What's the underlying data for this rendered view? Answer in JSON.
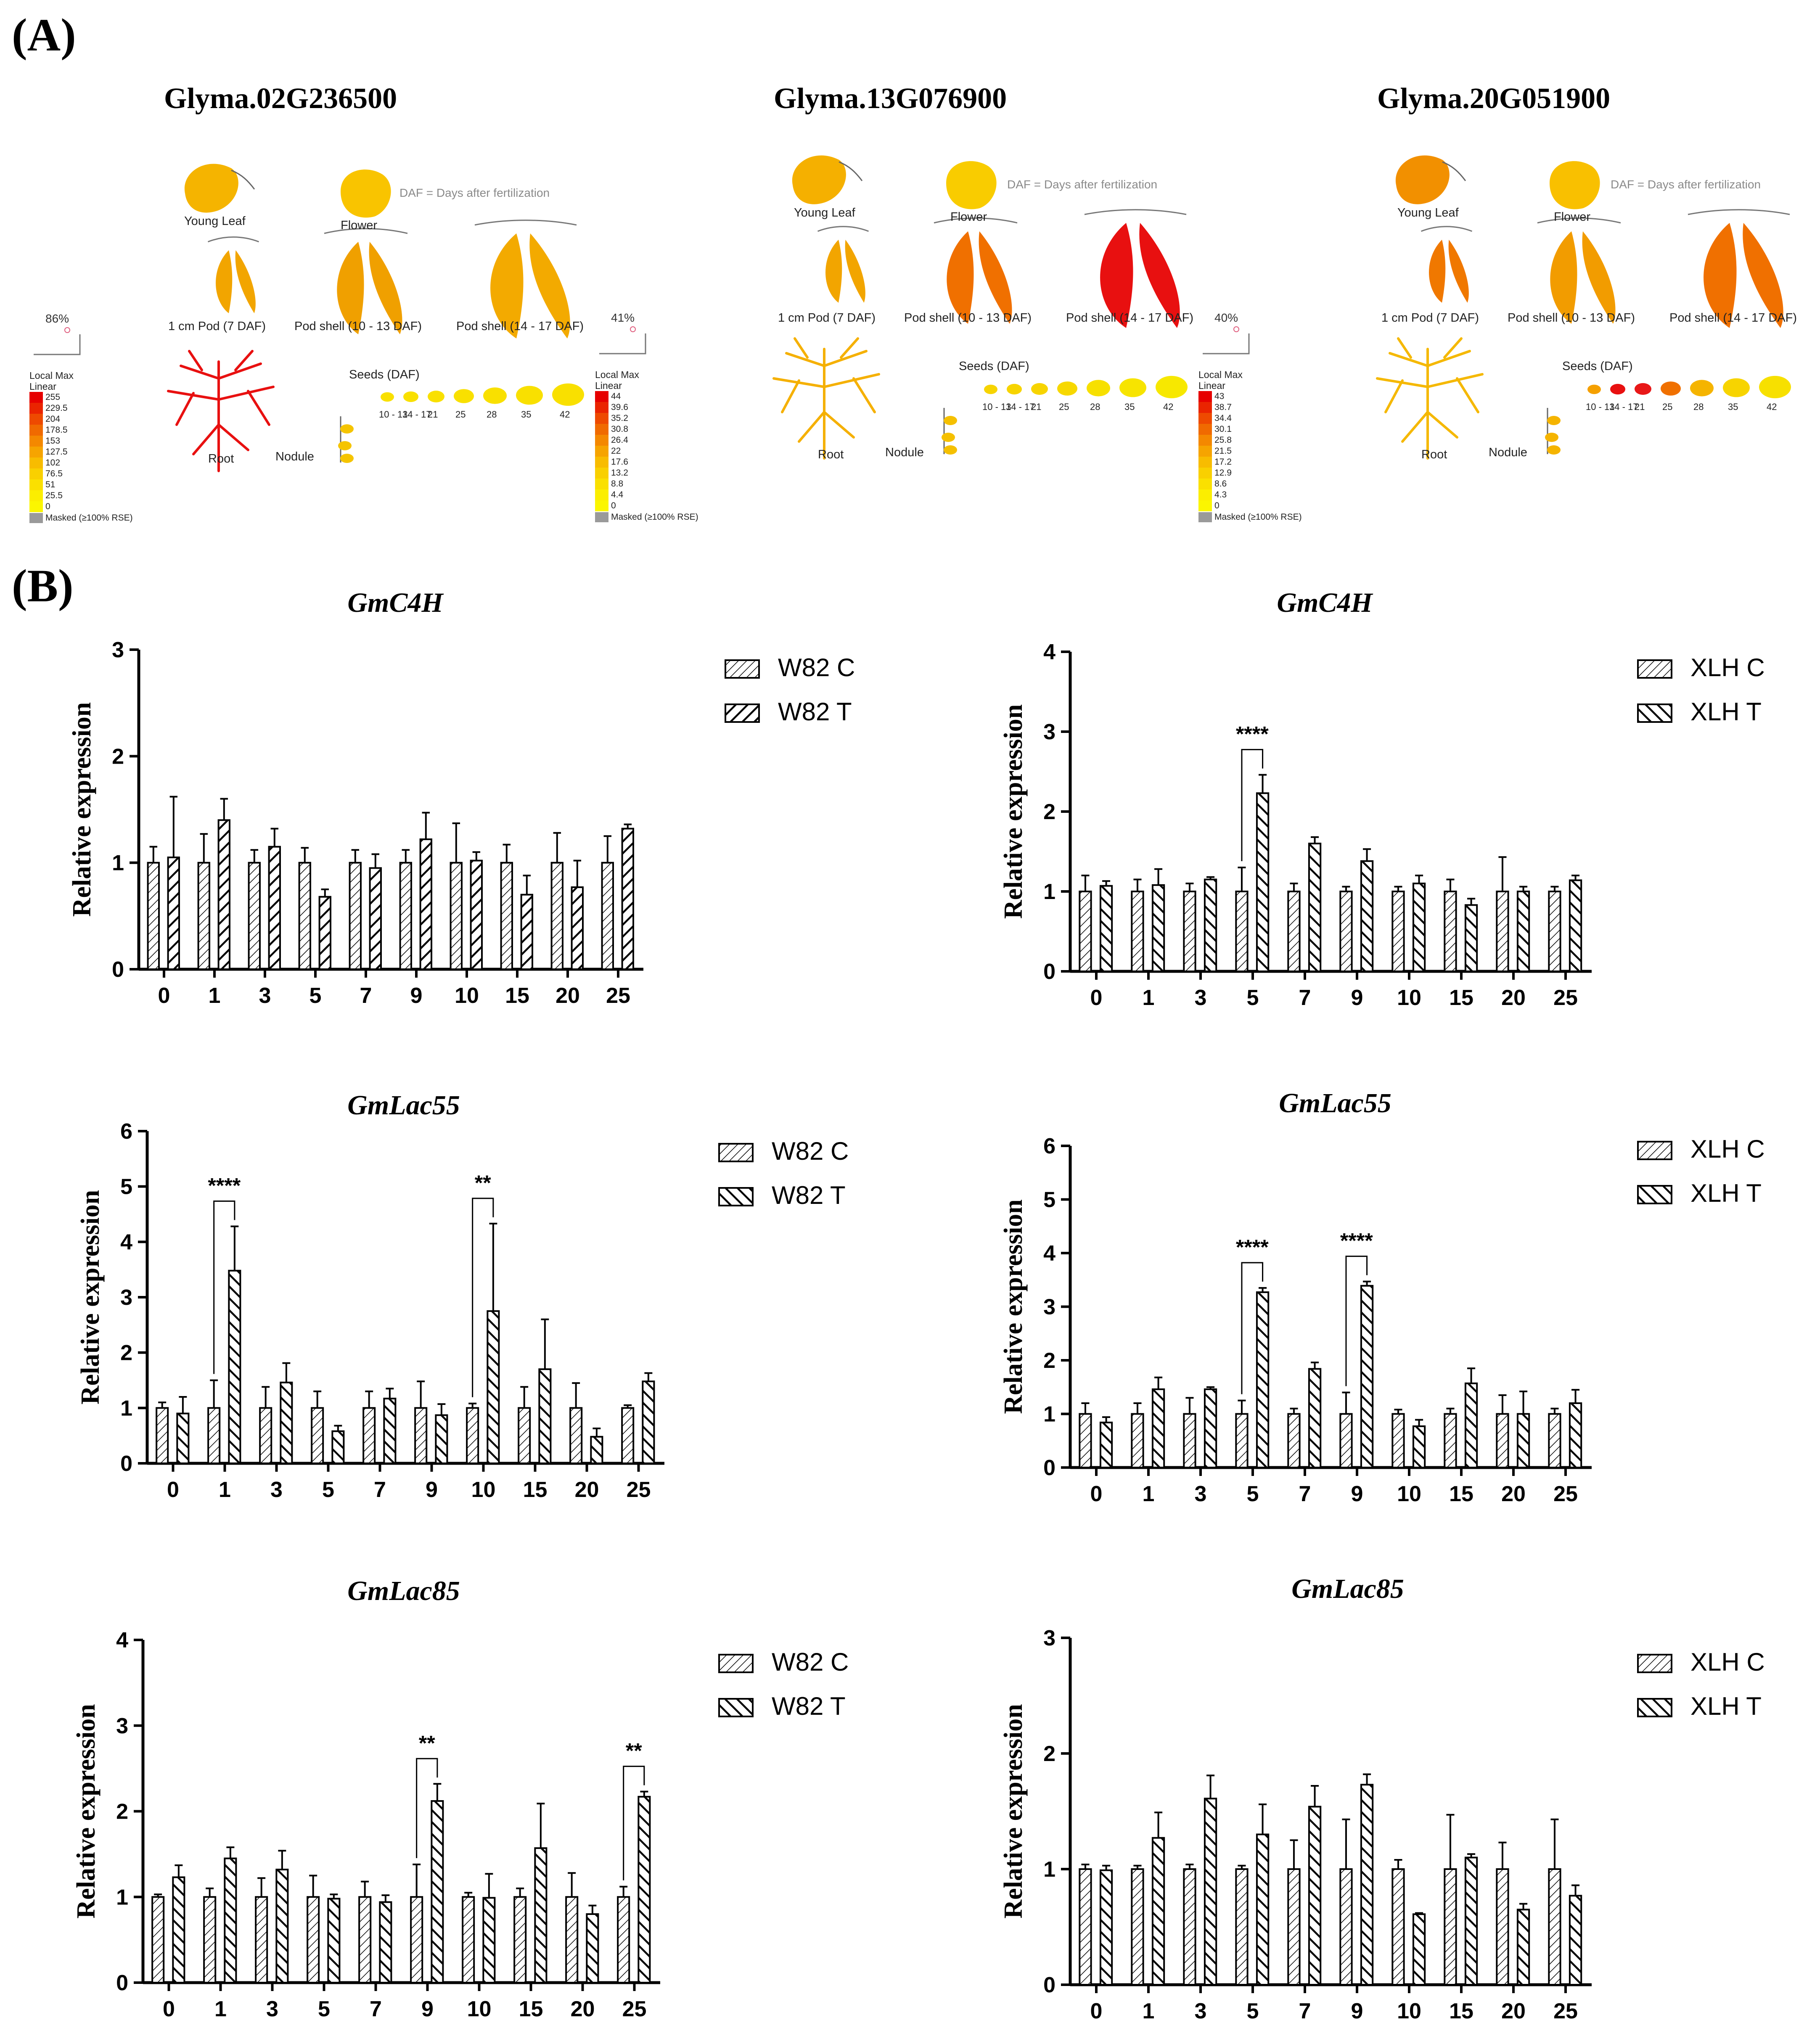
{
  "panel_a": {
    "letter": "(A)",
    "daf_note": "DAF = Days after fertilization",
    "organs": {
      "young_leaf": "Young Leaf",
      "flower": "Flower",
      "pod_1cm": "1 cm Pod (7 DAF)",
      "pod_shell_10_13": "Pod shell (10 - 13 DAF)",
      "pod_shell_14_17": "Pod shell (14 - 17 DAF)",
      "root": "Root",
      "nodule": "Nodule",
      "seeds": "Seeds (DAF)"
    },
    "seed_stages": [
      "10 - 13",
      "14 - 17",
      "21",
      "25",
      "28",
      "35",
      "42"
    ],
    "legend_title_1": "Local Max",
    "legend_title_2": "Linear",
    "masked_label": "Masked (≥100% RSE)",
    "genes": [
      {
        "name": "Glyma.02G236500",
        "percent": "86%",
        "scale": [
          "255",
          "229.5",
          "204",
          "178.5",
          "153",
          "127.5",
          "102",
          "76.5",
          "51",
          "25.5",
          "0"
        ],
        "colors": {
          "young_leaf": "#f5b400",
          "flower": "#f9c400",
          "pod_1cm": "#f2a500",
          "pod_shell_10_13": "#f0a000",
          "pod_shell_14_17": "#f3aa00",
          "root": "#e81010",
          "nodule": "#f5c400",
          "seeds": [
            "#f9e000",
            "#f9e000",
            "#f9e000",
            "#f9e000",
            "#f9e000",
            "#f9e000",
            "#f9e000"
          ]
        }
      },
      {
        "name": "Glyma.13G076900",
        "percent": "41%",
        "scale": [
          "44",
          "39.6",
          "35.2",
          "30.8",
          "26.4",
          "22",
          "17.6",
          "13.2",
          "8.8",
          "4.4",
          "0"
        ],
        "colors": {
          "young_leaf": "#f5b000",
          "flower": "#f9cc00",
          "pod_1cm": "#f2a500",
          "pod_shell_10_13": "#f07000",
          "pod_shell_14_17": "#e81010",
          "root": "#f5b000",
          "nodule": "#f5c000",
          "seeds": [
            "#f7d400",
            "#f7d400",
            "#f7d400",
            "#f7d800",
            "#f7e000",
            "#f7e400",
            "#f7e800"
          ]
        }
      },
      {
        "name": "Glyma.20G051900",
        "percent": "40%",
        "scale": [
          "43",
          "38.7",
          "34.4",
          "30.1",
          "25.8",
          "21.5",
          "17.2",
          "12.9",
          "8.6",
          "4.3",
          "0"
        ],
        "colors": {
          "young_leaf": "#f29000",
          "flower": "#f9c000",
          "pod_1cm": "#f07800",
          "pod_shell_10_13": "#f29c00",
          "pod_shell_14_17": "#f07000",
          "root": "#f5b800",
          "nodule": "#f5b400",
          "seeds": [
            "#f5a000",
            "#e81010",
            "#e81818",
            "#f07000",
            "#f5b400",
            "#f7d400",
            "#f7e000"
          ]
        }
      }
    ]
  },
  "panel_b": {
    "letter": "(B)"
  },
  "chart_data": [
    {
      "type": "bar",
      "title": "GmC4H",
      "xlabel": "",
      "ylabel": "Relative expression",
      "ylim": [
        0,
        3
      ],
      "yticks": [
        0,
        1,
        2,
        3
      ],
      "categories": [
        "0",
        "1",
        "3",
        "5",
        "7",
        "9",
        "10",
        "15",
        "20",
        "25"
      ],
      "series": [
        {
          "name": "W82  C",
          "values": [
            1.0,
            1.0,
            1.0,
            1.0,
            1.0,
            1.0,
            1.0,
            1.0,
            1.0,
            1.0
          ],
          "errors": [
            0.15,
            0.27,
            0.12,
            0.14,
            0.12,
            0.12,
            0.37,
            0.17,
            0.28,
            0.25
          ]
        },
        {
          "name": "W82  T",
          "values": [
            1.05,
            1.4,
            1.15,
            0.68,
            0.95,
            1.22,
            1.02,
            0.7,
            0.77,
            1.32
          ],
          "errors": [
            0.57,
            0.2,
            0.17,
            0.07,
            0.13,
            0.25,
            0.08,
            0.18,
            0.25,
            0.04
          ]
        }
      ],
      "significance": []
    },
    {
      "type": "bar",
      "title": "GmC4H",
      "xlabel": "",
      "ylabel": "Relative expression",
      "ylim": [
        0,
        4
      ],
      "yticks": [
        0,
        1,
        2,
        3,
        4
      ],
      "categories": [
        "0",
        "1",
        "3",
        "5",
        "7",
        "9",
        "10",
        "15",
        "20",
        "25"
      ],
      "series": [
        {
          "name": "XLH  C",
          "values": [
            1.0,
            1.0,
            1.0,
            1.0,
            1.0,
            1.0,
            1.0,
            1.0,
            1.0,
            1.0
          ],
          "errors": [
            0.2,
            0.15,
            0.1,
            0.3,
            0.1,
            0.06,
            0.06,
            0.15,
            0.43,
            0.06
          ]
        },
        {
          "name": "XLH  T",
          "values": [
            1.07,
            1.08,
            1.15,
            2.23,
            1.6,
            1.38,
            1.1,
            0.83,
            1.0,
            1.14
          ],
          "errors": [
            0.06,
            0.2,
            0.03,
            0.23,
            0.08,
            0.15,
            0.1,
            0.08,
            0.06,
            0.06
          ]
        }
      ],
      "significance": [
        {
          "index": 3,
          "label": "****"
        }
      ]
    },
    {
      "type": "bar",
      "title": "GmLac55",
      "xlabel": "",
      "ylabel": "Relative expression",
      "ylim": [
        0,
        6
      ],
      "yticks": [
        0,
        1,
        2,
        3,
        4,
        5,
        6
      ],
      "categories": [
        "0",
        "1",
        "3",
        "5",
        "7",
        "9",
        "10",
        "15",
        "20",
        "25"
      ],
      "series": [
        {
          "name": "W82 C",
          "values": [
            1.0,
            1.0,
            1.0,
            1.0,
            1.0,
            1.0,
            1.0,
            1.0,
            1.0,
            1.0
          ],
          "errors": [
            0.1,
            0.5,
            0.38,
            0.3,
            0.3,
            0.48,
            0.08,
            0.38,
            0.45,
            0.05
          ]
        },
        {
          "name": "W82 T",
          "values": [
            0.9,
            3.48,
            1.46,
            0.58,
            1.17,
            0.87,
            2.75,
            1.7,
            0.48,
            1.48
          ],
          "errors": [
            0.3,
            0.8,
            0.35,
            0.1,
            0.18,
            0.2,
            1.58,
            0.9,
            0.15,
            0.15
          ]
        }
      ],
      "significance": [
        {
          "index": 1,
          "label": "****"
        },
        {
          "index": 6,
          "label": "**"
        }
      ]
    },
    {
      "type": "bar",
      "title": "GmLac55",
      "xlabel": "",
      "ylabel": "Relative expression",
      "ylim": [
        0,
        6
      ],
      "yticks": [
        0,
        1,
        2,
        3,
        4,
        5,
        6
      ],
      "categories": [
        "0",
        "1",
        "3",
        "5",
        "7",
        "9",
        "10",
        "15",
        "20",
        "25"
      ],
      "series": [
        {
          "name": "XLH C",
          "values": [
            1.0,
            1.0,
            1.0,
            1.0,
            1.0,
            1.0,
            1.0,
            1.0,
            1.0,
            1.0
          ],
          "errors": [
            0.2,
            0.2,
            0.3,
            0.25,
            0.1,
            0.4,
            0.08,
            0.1,
            0.35,
            0.1
          ]
        },
        {
          "name": "XLH T",
          "values": [
            0.84,
            1.46,
            1.46,
            3.27,
            1.84,
            3.39,
            0.77,
            1.57,
            1.0,
            1.2
          ],
          "errors": [
            0.1,
            0.22,
            0.04,
            0.08,
            0.12,
            0.08,
            0.12,
            0.28,
            0.42,
            0.25
          ]
        }
      ],
      "significance": [
        {
          "index": 3,
          "label": "****"
        },
        {
          "index": 5,
          "label": "****"
        }
      ]
    },
    {
      "type": "bar",
      "title": "GmLac85",
      "xlabel": "",
      "ylabel": "Relative expression",
      "ylim": [
        0,
        4
      ],
      "yticks": [
        0,
        1,
        2,
        3,
        4
      ],
      "categories": [
        "0",
        "1",
        "3",
        "5",
        "7",
        "9",
        "10",
        "15",
        "20",
        "25"
      ],
      "series": [
        {
          "name": "W82 C",
          "values": [
            1.0,
            1.0,
            1.0,
            1.0,
            1.0,
            1.0,
            1.0,
            1.0,
            1.0,
            1.0
          ],
          "errors": [
            0.03,
            0.1,
            0.22,
            0.25,
            0.18,
            0.38,
            0.05,
            0.1,
            0.28,
            0.12
          ]
        },
        {
          "name": "W82 T",
          "values": [
            1.23,
            1.45,
            1.32,
            0.98,
            0.94,
            2.12,
            0.99,
            1.57,
            0.8,
            2.17
          ],
          "errors": [
            0.14,
            0.13,
            0.22,
            0.05,
            0.08,
            0.2,
            0.28,
            0.52,
            0.1,
            0.06
          ]
        }
      ],
      "significance": [
        {
          "index": 5,
          "label": "**"
        },
        {
          "index": 9,
          "label": "**"
        }
      ]
    },
    {
      "type": "bar",
      "title": "GmLac85",
      "xlabel": "",
      "ylabel": "Relative expression",
      "ylim": [
        0,
        3
      ],
      "yticks": [
        0,
        1,
        2,
        3
      ],
      "categories": [
        "0",
        "1",
        "3",
        "5",
        "7",
        "9",
        "10",
        "15",
        "20",
        "25"
      ],
      "series": [
        {
          "name": "XLH C",
          "values": [
            1.0,
            1.0,
            1.0,
            1.0,
            1.0,
            1.0,
            1.0,
            1.0,
            1.0,
            1.0
          ],
          "errors": [
            0.04,
            0.03,
            0.04,
            0.03,
            0.25,
            0.43,
            0.08,
            0.47,
            0.23,
            0.43
          ]
        },
        {
          "name": "XLH T",
          "values": [
            0.99,
            1.27,
            1.61,
            1.3,
            1.54,
            1.73,
            0.61,
            1.1,
            0.65,
            0.77
          ],
          "errors": [
            0.04,
            0.22,
            0.2,
            0.26,
            0.18,
            0.09,
            0.01,
            0.03,
            0.05,
            0.09
          ]
        }
      ],
      "significance": []
    }
  ]
}
